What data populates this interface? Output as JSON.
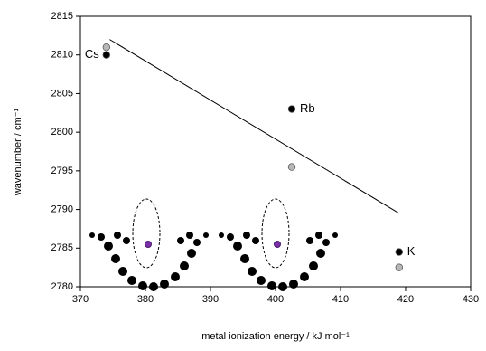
{
  "chart_data": {
    "type": "scatter",
    "xlabel": "metal ionization energy / kJ mol⁻¹",
    "ylabel": "wavenumber / cm⁻¹",
    "xlim": [
      370,
      430
    ],
    "xticks": [
      370,
      380,
      390,
      400,
      410,
      420,
      430
    ],
    "ylim": [
      2780,
      2815
    ],
    "yticks": [
      2780,
      2785,
      2790,
      2795,
      2800,
      2805,
      2810,
      2815
    ],
    "series": [
      {
        "color": "#000000",
        "x": [
          374,
          402.5,
          419
        ],
        "values": [
          2810,
          2803,
          2784.5
        ],
        "labels": [
          "Cs",
          "Rb",
          "K"
        ]
      },
      {
        "color": "#b8b8b8",
        "x": [
          374,
          402.5,
          419
        ],
        "values": [
          2811,
          2795.5,
          2782.5
        ]
      }
    ],
    "fit_line": {
      "color": "#000000",
      "x": [
        374.5,
        419
      ],
      "values": [
        2812,
        2789.5
      ]
    }
  }
}
